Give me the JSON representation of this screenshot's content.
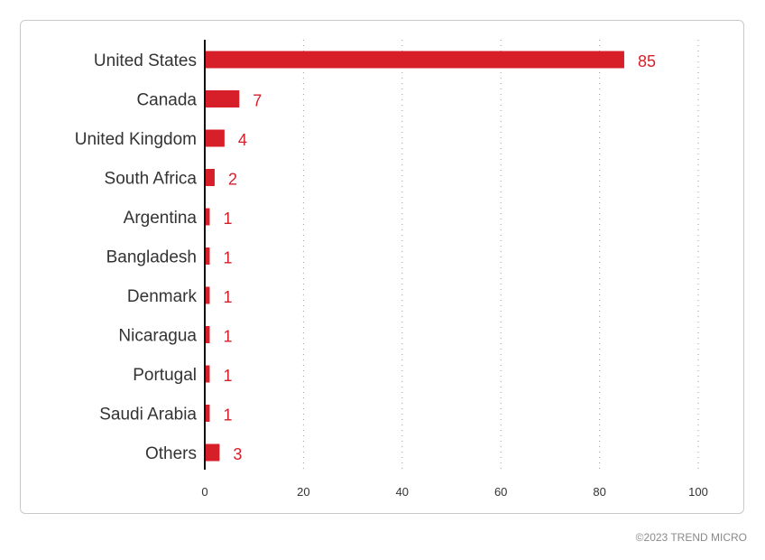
{
  "chart_data": {
    "type": "bar",
    "orientation": "horizontal",
    "categories": [
      "United States",
      "Canada",
      "United Kingdom",
      "South Africa",
      "Argentina",
      "Bangladesh",
      "Denmark",
      "Nicaragua",
      "Portugal",
      "Saudi Arabia",
      "Others"
    ],
    "values": [
      85,
      7,
      4,
      2,
      1,
      1,
      1,
      1,
      1,
      1,
      3
    ],
    "value_labels": [
      "85",
      "7",
      "4",
      "2",
      "1",
      "1",
      "1",
      "1",
      "1",
      "1",
      "3"
    ],
    "xlim": [
      0,
      100
    ],
    "xticks": [
      0,
      20,
      40,
      60,
      80,
      100
    ],
    "xtick_labels": [
      "0",
      "20",
      "40",
      "60",
      "80",
      "100"
    ],
    "grid": "vertical dotted",
    "bar_color": "#d71f2a",
    "label_color": "#d71f2a"
  },
  "footer": {
    "copyright": "©2023 TREND MICRO"
  }
}
